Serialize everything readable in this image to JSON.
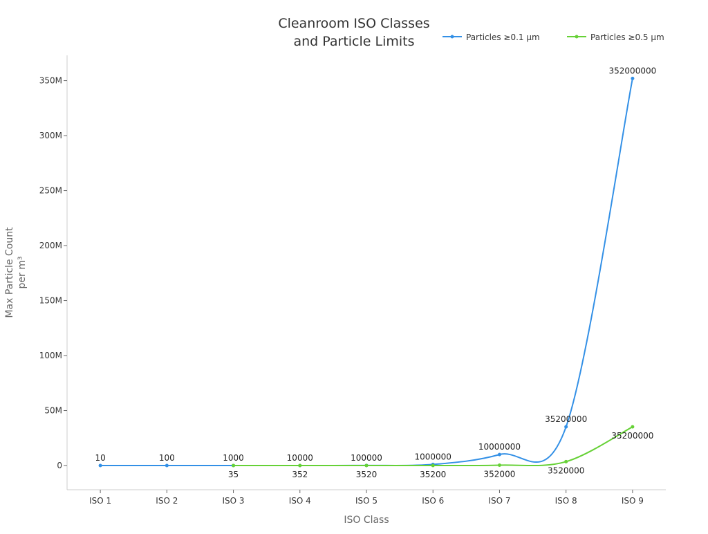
{
  "chart_data": {
    "type": "line",
    "title_lines": [
      "Cleanroom ISO Classes",
      "and Particle Limits"
    ],
    "xlabel": "ISO Class",
    "ylabel_lines": [
      "Max Particle Count",
      "per m³"
    ],
    "categories": [
      "ISO 1",
      "ISO 2",
      "ISO 3",
      "ISO 4",
      "ISO 5",
      "ISO 6",
      "ISO 7",
      "ISO 8",
      "ISO 9"
    ],
    "ylim": [
      -22000000,
      373000000
    ],
    "yticks": [
      0,
      50000000,
      100000000,
      150000000,
      200000000,
      250000000,
      300000000,
      350000000
    ],
    "ytick_labels": [
      "0",
      "50M",
      "100M",
      "150M",
      "200M",
      "250M",
      "300M",
      "350M"
    ],
    "grid": false,
    "legend_position": "top-right",
    "series": [
      {
        "name": "Particles ≥0.1 µm",
        "color": "#3390e6",
        "values": [
          10,
          100,
          1000,
          10000,
          100000,
          1000000,
          10000000,
          35200000,
          352000000
        ]
      },
      {
        "name": "Particles ≥0.5 µm",
        "color": "#66d136",
        "values": [
          null,
          null,
          35,
          352,
          3520,
          35200,
          352000,
          3520000,
          35200000
        ]
      }
    ]
  }
}
